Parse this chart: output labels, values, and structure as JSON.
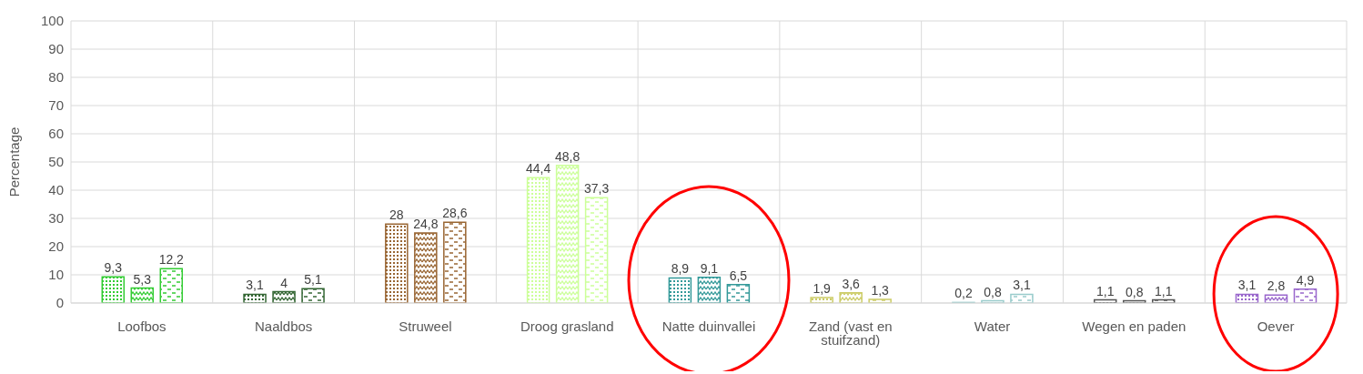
{
  "chart_data": {
    "type": "bar",
    "ylabel": "Percentage",
    "categories": [
      "Loofbos",
      "Naaldbos",
      "Struweel",
      "Droog grasland",
      "Natte duinvallei",
      "Zand (vast en stuifzand)",
      "Water",
      "Wegen en paden",
      "Oever"
    ],
    "series": [
      {
        "values": [
          9.3,
          3.1,
          28,
          44.4,
          8.9,
          1.9,
          0.2,
          1.1,
          3.1
        ],
        "value_labels": [
          "9,3",
          "3,1",
          "28",
          "44,4",
          "8,9",
          "1,9",
          "0,2",
          "1,1",
          "3,1"
        ],
        "colors": [
          "#33cc33",
          "#336633",
          "#996633",
          "#ccff99",
          "#339999",
          "#cccc66",
          "#99cccc",
          "#555555",
          "#9966cc"
        ]
      },
      {
        "values": [
          5.3,
          4,
          24.8,
          48.8,
          9.1,
          3.6,
          0.8,
          0.8,
          2.8
        ],
        "value_labels": [
          "5,3",
          "4",
          "24,8",
          "48,8",
          "9,1",
          "3,6",
          "0,8",
          "0,8",
          "2,8"
        ],
        "colors": [
          "#33cc33",
          "#336633",
          "#996633",
          "#ccff99",
          "#339999",
          "#cccc66",
          "#99cccc",
          "#555555",
          "#9966cc"
        ]
      },
      {
        "values": [
          12.2,
          5.1,
          28.6,
          37.3,
          6.5,
          1.3,
          3.1,
          1.1,
          4.9
        ],
        "value_labels": [
          "12,2",
          "5,1",
          "28,6",
          "37,3",
          "6,5",
          "1,3",
          "3,1",
          "1,1",
          "4,9"
        ],
        "colors": [
          "#33cc33",
          "#336633",
          "#996633",
          "#ccff99",
          "#339999",
          "#cccc66",
          "#99cccc",
          "#555555",
          "#9966cc"
        ]
      }
    ],
    "ylim": [
      0,
      100
    ],
    "yticks": [
      0,
      10,
      20,
      30,
      40,
      50,
      60,
      70,
      80,
      90,
      100
    ],
    "grid": true
  }
}
